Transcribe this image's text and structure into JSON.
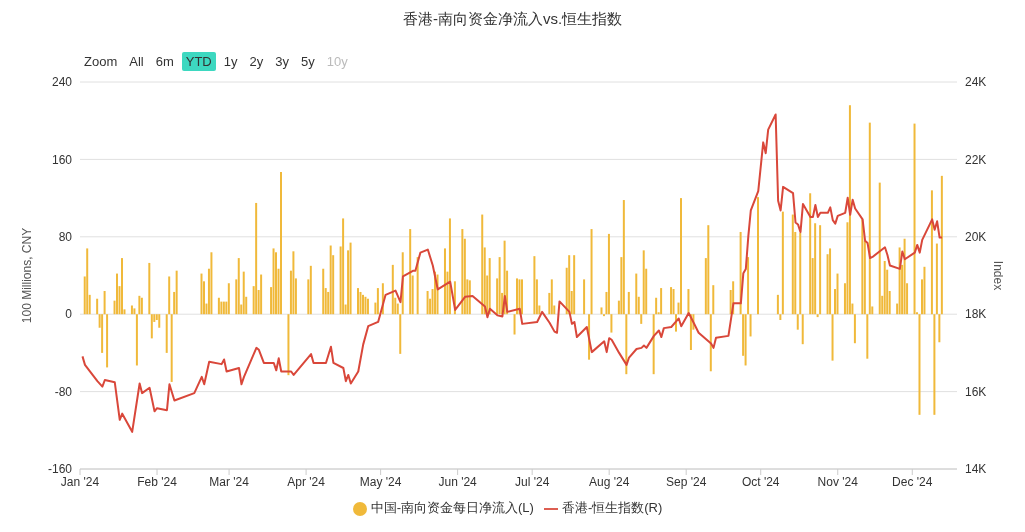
{
  "chart_data": {
    "type": "bar",
    "title": "香港-南向资金净流入vs.恒生指数",
    "ylabel": "100 Millions, CNY",
    "y2label": "Index",
    "annotations": [
      "Zoom",
      "All",
      "6m",
      "YTD",
      "1y",
      "2y",
      "3y",
      "5y",
      "10y"
    ],
    "xlim": [
      "2024-01-01",
      "2024-12-19"
    ],
    "xticks": [
      {
        "value": "2024-01-01",
        "label": "Jan '24"
      },
      {
        "value": "2024-02-01",
        "label": "Feb '24"
      },
      {
        "value": "2024-03-01",
        "label": "Mar '24"
      },
      {
        "value": "2024-04-01",
        "label": "Apr '24"
      },
      {
        "value": "2024-05-01",
        "label": "May '24"
      },
      {
        "value": "2024-06-01",
        "label": "Jun '24"
      },
      {
        "value": "2024-07-01",
        "label": "Jul '24"
      },
      {
        "value": "2024-08-01",
        "label": "Aug '24"
      },
      {
        "value": "2024-09-01",
        "label": "Sep '24"
      },
      {
        "value": "2024-10-01",
        "label": "Oct '24"
      },
      {
        "value": "2024-11-01",
        "label": "Nov '24"
      },
      {
        "value": "2024-12-01",
        "label": "Dec '24"
      }
    ],
    "ylim": [
      -160,
      240
    ],
    "yticks": [
      -160,
      -80,
      0,
      80,
      160,
      240
    ],
    "y2lim": [
      14000,
      24000
    ],
    "y2ticks": [
      {
        "value": 14000,
        "label": "14K"
      },
      {
        "value": 16000,
        "label": "16K"
      },
      {
        "value": 18000,
        "label": "18K"
      },
      {
        "value": 20000,
        "label": "20K"
      },
      {
        "value": 22000,
        "label": "22K"
      },
      {
        "value": 24000,
        "label": "24K"
      }
    ],
    "grid": "y",
    "legend": "bottom",
    "marker": "none",
    "line_style": "solid",
    "series": [
      {
        "name": "中国-南向资金每日净流入(L)",
        "color": "#f0b93a",
        "x": [
          "2024-01-03",
          "2024-01-04",
          "2024-01-05",
          "2024-01-08",
          "2024-01-09",
          "2024-01-10",
          "2024-01-11",
          "2024-01-12",
          "2024-01-15",
          "2024-01-16",
          "2024-01-17",
          "2024-01-18",
          "2024-01-19",
          "2024-01-22",
          "2024-01-23",
          "2024-01-24",
          "2024-01-25",
          "2024-01-26",
          "2024-01-29",
          "2024-01-30",
          "2024-01-31",
          "2024-02-01",
          "2024-02-02",
          "2024-02-05",
          "2024-02-06",
          "2024-02-07",
          "2024-02-08",
          "2024-02-09",
          "2024-02-19",
          "2024-02-20",
          "2024-02-21",
          "2024-02-22",
          "2024-02-23",
          "2024-02-26",
          "2024-02-27",
          "2024-02-28",
          "2024-02-29",
          "2024-03-01",
          "2024-03-04",
          "2024-03-05",
          "2024-03-06",
          "2024-03-07",
          "2024-03-08",
          "2024-03-11",
          "2024-03-12",
          "2024-03-13",
          "2024-03-14",
          "2024-03-18",
          "2024-03-19",
          "2024-03-20",
          "2024-03-21",
          "2024-03-22",
          "2024-03-25",
          "2024-03-26",
          "2024-03-27",
          "2024-03-28",
          "2024-04-02",
          "2024-04-03",
          "2024-04-08",
          "2024-04-09",
          "2024-04-10",
          "2024-04-11",
          "2024-04-12",
          "2024-04-15",
          "2024-04-16",
          "2024-04-17",
          "2024-04-18",
          "2024-04-19",
          "2024-04-22",
          "2024-04-23",
          "2024-04-24",
          "2024-04-25",
          "2024-04-26",
          "2024-04-29",
          "2024-04-30",
          "2024-05-02",
          "2024-05-06",
          "2024-05-07",
          "2024-05-08",
          "2024-05-09",
          "2024-05-10",
          "2024-05-13",
          "2024-05-14",
          "2024-05-16",
          "2024-05-20",
          "2024-05-21",
          "2024-05-22",
          "2024-05-23",
          "2024-05-24",
          "2024-05-27",
          "2024-05-28",
          "2024-05-29",
          "2024-05-31",
          "2024-06-03",
          "2024-06-04",
          "2024-06-05",
          "2024-06-06",
          "2024-06-11",
          "2024-06-12",
          "2024-06-13",
          "2024-06-14",
          "2024-06-17",
          "2024-06-18",
          "2024-06-19",
          "2024-06-20",
          "2024-06-21",
          "2024-06-24",
          "2024-06-25",
          "2024-06-26",
          "2024-06-27",
          "2024-07-02",
          "2024-07-03",
          "2024-07-04",
          "2024-07-08",
          "2024-07-09",
          "2024-07-10",
          "2024-07-15",
          "2024-07-16",
          "2024-07-17",
          "2024-07-18",
          "2024-07-22",
          "2024-07-24",
          "2024-07-25",
          "2024-07-29",
          "2024-07-30",
          "2024-07-31",
          "2024-08-01",
          "2024-08-02",
          "2024-08-05",
          "2024-08-06",
          "2024-08-07",
          "2024-08-08",
          "2024-08-09",
          "2024-08-12",
          "2024-08-13",
          "2024-08-14",
          "2024-08-15",
          "2024-08-16",
          "2024-08-19",
          "2024-08-20",
          "2024-08-21",
          "2024-08-22",
          "2024-08-26",
          "2024-08-27",
          "2024-08-28",
          "2024-08-29",
          "2024-08-30",
          "2024-09-02",
          "2024-09-03",
          "2024-09-04",
          "2024-09-09",
          "2024-09-10",
          "2024-09-11",
          "2024-09-12",
          "2024-09-19",
          "2024-09-20",
          "2024-09-23",
          "2024-09-24",
          "2024-09-25",
          "2024-09-26",
          "2024-09-27",
          "2024-09-30",
          "2024-10-08",
          "2024-10-09",
          "2024-10-10",
          "2024-10-14",
          "2024-10-15",
          "2024-10-16",
          "2024-10-17",
          "2024-10-18",
          "2024-10-21",
          "2024-10-22",
          "2024-10-23",
          "2024-10-24",
          "2024-10-25",
          "2024-10-28",
          "2024-10-29",
          "2024-10-30",
          "2024-10-31",
          "2024-11-01",
          "2024-11-04",
          "2024-11-05",
          "2024-11-06",
          "2024-11-07",
          "2024-11-08",
          "2024-11-11",
          "2024-11-12",
          "2024-11-13",
          "2024-11-14",
          "2024-11-15",
          "2024-11-18",
          "2024-11-19",
          "2024-11-20",
          "2024-11-21",
          "2024-11-22",
          "2024-11-25",
          "2024-11-26",
          "2024-11-27",
          "2024-11-28",
          "2024-11-29",
          "2024-12-02",
          "2024-12-03",
          "2024-12-04",
          "2024-12-05",
          "2024-12-06",
          "2024-12-09",
          "2024-12-10",
          "2024-12-11",
          "2024-12-12",
          "2024-12-13"
        ],
        "values": [
          39,
          68,
          20,
          16,
          -14,
          -40,
          24,
          -55,
          14,
          42,
          29,
          58,
          5,
          9,
          6,
          -53,
          19,
          17,
          53,
          -25,
          -8,
          -6,
          -14,
          -40,
          39,
          -70,
          23,
          45,
          42,
          34,
          11,
          47,
          64,
          17,
          13,
          13,
          13,
          32,
          36,
          58,
          10,
          44,
          18,
          29,
          115,
          25,
          41,
          28,
          68,
          64,
          47,
          147,
          -63,
          45,
          65,
          37,
          36,
          50,
          47,
          27,
          23,
          71,
          61,
          70,
          99,
          10,
          66,
          74,
          27,
          23,
          20,
          18,
          16,
          12,
          27,
          32,
          51,
          17,
          11,
          -41,
          64,
          88,
          40,
          59,
          24,
          16,
          26,
          44,
          41,
          68,
          44,
          99,
          34,
          88,
          78,
          36,
          35,
          103,
          69,
          40,
          58,
          37,
          59,
          22,
          76,
          45,
          -21,
          37,
          36,
          36,
          60,
          36,
          9,
          22,
          36,
          9,
          48,
          61,
          24,
          61,
          36,
          -47,
          88,
          7,
          -2,
          23,
          83,
          -19,
          14,
          59,
          118,
          -62,
          23,
          42,
          18,
          -10,
          66,
          47,
          -62,
          17,
          2,
          27,
          28,
          26,
          -18,
          12,
          120,
          26,
          -37,
          -16,
          58,
          92,
          -59,
          30,
          25,
          34,
          85,
          -43,
          -53,
          59,
          -23,
          121,
          20,
          -6,
          106,
          103,
          85,
          -16,
          84,
          -31,
          125,
          58,
          94,
          -3,
          92,
          62,
          68,
          -48,
          26,
          42,
          32,
          95,
          216,
          11,
          -30,
          98,
          76,
          -46,
          198,
          8,
          136,
          19,
          55,
          46,
          24,
          11,
          69,
          51,
          78,
          32,
          197,
          2,
          -104,
          36,
          49,
          128,
          -104,
          73,
          -29,
          143
        ]
      },
      {
        "name": "香港-恒生指数(R)",
        "type": "line",
        "axis": "y2",
        "color": "#d9473a",
        "x": [
          "2024-01-02",
          "2024-01-03",
          "2024-01-08",
          "2024-01-10",
          "2024-01-11",
          "2024-01-15",
          "2024-01-17",
          "2024-01-18",
          "2024-01-22",
          "2024-01-25",
          "2024-01-26",
          "2024-01-29",
          "2024-01-31",
          "2024-02-01",
          "2024-02-05",
          "2024-02-06",
          "2024-02-08",
          "2024-02-16",
          "2024-02-19",
          "2024-02-20",
          "2024-02-22",
          "2024-02-27",
          "2024-02-28",
          "2024-02-29",
          "2024-03-05",
          "2024-03-06",
          "2024-03-07",
          "2024-03-12",
          "2024-03-13",
          "2024-03-15",
          "2024-03-19",
          "2024-03-20",
          "2024-03-21",
          "2024-03-22",
          "2024-03-26",
          "2024-03-27",
          "2024-04-03",
          "2024-04-04",
          "2024-04-09",
          "2024-04-11",
          "2024-04-12",
          "2024-04-16",
          "2024-04-17",
          "2024-04-18",
          "2024-04-19",
          "2024-04-22",
          "2024-04-24",
          "2024-04-26",
          "2024-04-30",
          "2024-05-03",
          "2024-05-07",
          "2024-05-09",
          "2024-05-10",
          "2024-05-14",
          "2024-05-15",
          "2024-05-17",
          "2024-05-20",
          "2024-05-22",
          "2024-05-24",
          "2024-05-29",
          "2024-05-31",
          "2024-06-04",
          "2024-06-07",
          "2024-06-12",
          "2024-06-13",
          "2024-06-14",
          "2024-06-17",
          "2024-06-19",
          "2024-06-20",
          "2024-06-21",
          "2024-06-26",
          "2024-06-27",
          "2024-07-03",
          "2024-07-05",
          "2024-07-08",
          "2024-07-10",
          "2024-07-11",
          "2024-07-12",
          "2024-07-16",
          "2024-07-17",
          "2024-07-18",
          "2024-07-19",
          "2024-07-23",
          "2024-07-25",
          "2024-07-30",
          "2024-07-31",
          "2024-08-01",
          "2024-08-02",
          "2024-08-05",
          "2024-08-08",
          "2024-08-09",
          "2024-08-12",
          "2024-08-14",
          "2024-08-15",
          "2024-08-16",
          "2024-08-19",
          "2024-08-21",
          "2024-08-22",
          "2024-08-23",
          "2024-08-26",
          "2024-08-29",
          "2024-08-30",
          "2024-09-02",
          "2024-09-04",
          "2024-09-06",
          "2024-09-11",
          "2024-09-12",
          "2024-09-13",
          "2024-09-18",
          "2024-09-20",
          "2024-09-23",
          "2024-09-24",
          "2024-09-25",
          "2024-09-26",
          "2024-09-27",
          "2024-09-30",
          "2024-10-02",
          "2024-10-03",
          "2024-10-04",
          "2024-10-07",
          "2024-10-08",
          "2024-10-09",
          "2024-10-10",
          "2024-10-14",
          "2024-10-15",
          "2024-10-16",
          "2024-10-17",
          "2024-10-18",
          "2024-10-21",
          "2024-10-22",
          "2024-10-23",
          "2024-10-24",
          "2024-10-25",
          "2024-10-28",
          "2024-10-29",
          "2024-10-30",
          "2024-10-31",
          "2024-11-01",
          "2024-11-04",
          "2024-11-05",
          "2024-11-06",
          "2024-11-07",
          "2024-11-08",
          "2024-11-11",
          "2024-11-12",
          "2024-11-13",
          "2024-11-14",
          "2024-11-15",
          "2024-11-20",
          "2024-11-21",
          "2024-11-22",
          "2024-11-26",
          "2024-11-27",
          "2024-11-28",
          "2024-12-02",
          "2024-12-03",
          "2024-12-04",
          "2024-12-05",
          "2024-12-09",
          "2024-12-10",
          "2024-12-11",
          "2024-12-12",
          "2024-12-13"
        ],
        "values": [
          16910,
          16690,
          16270,
          16130,
          16300,
          16240,
          15270,
          15430,
          14960,
          16210,
          15960,
          16100,
          15490,
          15570,
          15520,
          16190,
          15770,
          15960,
          16380,
          16190,
          16770,
          16710,
          16830,
          16520,
          16610,
          16190,
          16380,
          17130,
          17080,
          16740,
          16740,
          16550,
          16860,
          16520,
          16520,
          16430,
          16970,
          16740,
          16740,
          17160,
          16740,
          16610,
          16270,
          16430,
          16210,
          16520,
          17220,
          17690,
          17800,
          18500,
          18610,
          18310,
          18980,
          19120,
          19120,
          19590,
          19670,
          19260,
          18640,
          18840,
          18110,
          18450,
          18470,
          18200,
          17920,
          18140,
          17970,
          17940,
          18470,
          18060,
          18140,
          17750,
          17800,
          18060,
          17780,
          17550,
          17520,
          18330,
          18060,
          17750,
          17800,
          17410,
          17670,
          17020,
          17300,
          17020,
          17380,
          17340,
          17000,
          16690,
          16880,
          17100,
          17130,
          17190,
          17130,
          17440,
          17580,
          17410,
          17640,
          17670,
          17890,
          17690,
          18030,
          17780,
          17520,
          17240,
          17130,
          17390,
          17440,
          18280,
          18280,
          19060,
          19170,
          20010,
          20680,
          21180,
          22440,
          22160,
          22770,
          23160,
          20930,
          20680,
          21290,
          21130,
          20370,
          20320,
          20120,
          20850,
          20510,
          20510,
          20820,
          20510,
          20620,
          20620,
          20760,
          20430,
          20340,
          20540,
          20620,
          21010,
          20570,
          20960,
          20730,
          20450,
          19900,
          19840,
          19450,
          19480,
          19730,
          19530,
          19260,
          19170,
          19620,
          19420,
          19590,
          19790,
          19590,
          19920,
          20450,
          20180,
          20400,
          19980,
          19980
        ]
      }
    ]
  }
}
